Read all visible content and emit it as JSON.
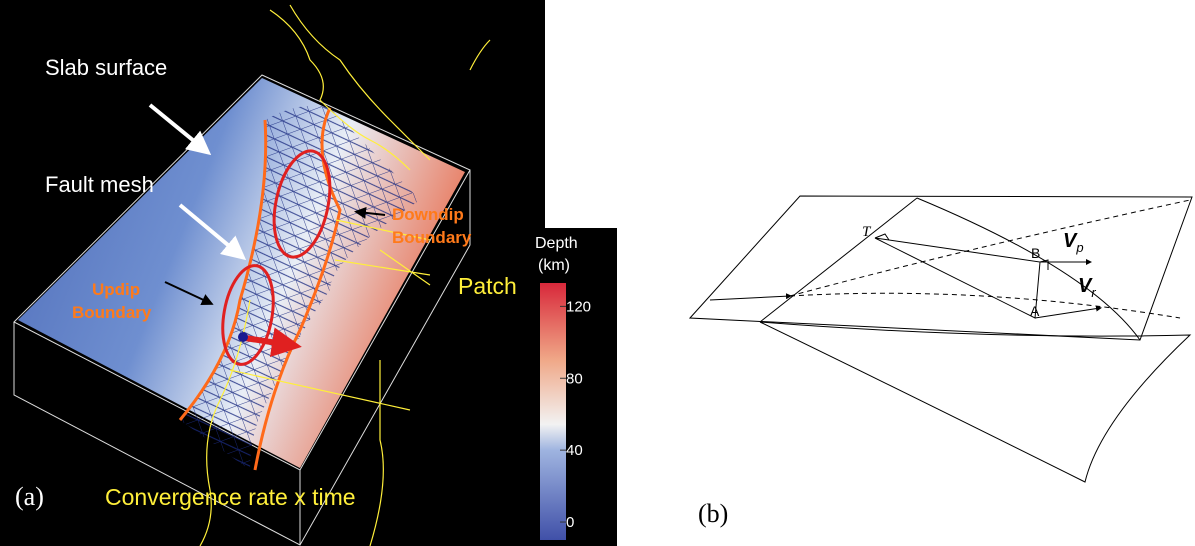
{
  "panel_a": {
    "label": "(a)",
    "slab_surface": "Slab surface",
    "fault_mesh": "Fault mesh",
    "downdip": [
      "Downdip",
      "Boundary"
    ],
    "updip": [
      "Updip",
      "Boundary"
    ],
    "patch": "Patch",
    "caption": "Convergence rate x time",
    "colorbar": {
      "title": "Depth",
      "unit": "(km)",
      "lim": [
        -10,
        133
      ],
      "ticks": [
        120,
        80,
        40,
        0
      ]
    }
  },
  "panel_b": {
    "label": "(b)",
    "point_t": "T",
    "point_b": "B",
    "point_a": "A",
    "v_p": {
      "main": "V",
      "sub": "p"
    },
    "v_r": {
      "main": "V",
      "sub": "r"
    }
  }
}
